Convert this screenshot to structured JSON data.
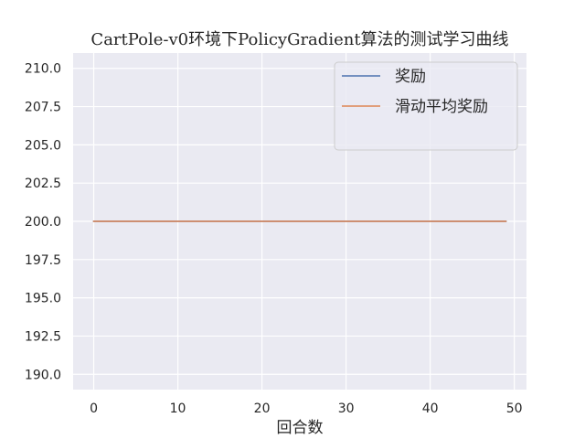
{
  "chart_data": {
    "type": "line",
    "title": "CartPole-v0环境下PolicyGradient算法的测试学习曲线",
    "xlabel": "回合数",
    "ylabel": "",
    "xlim": [
      -2.45,
      51.45
    ],
    "ylim": [
      189.0,
      211.0
    ],
    "xticks": [
      0,
      10,
      20,
      30,
      40,
      50
    ],
    "yticks": [
      190.0,
      192.5,
      195.0,
      197.5,
      200.0,
      202.5,
      205.0,
      207.5,
      210.0
    ],
    "ytick_labels": [
      "190.0",
      "192.5",
      "195.0",
      "197.5",
      "200.0",
      "202.5",
      "205.0",
      "207.5",
      "210.0"
    ],
    "grid": true,
    "legend_position": "top-right",
    "series": [
      {
        "name": "奖励",
        "color": "#4c72b0",
        "x": [
          0,
          49
        ],
        "y": [
          200.0,
          200.0
        ],
        "note": "constant at 200.0 for all 50 episodes (0–49), hidden beneath 滑动平均奖励"
      },
      {
        "name": "滑动平均奖励",
        "color": "#dd8452",
        "x": [
          0,
          49
        ],
        "y": [
          200.0,
          200.0
        ],
        "note": "constant at 200.0 for all 50 episodes (0–49)"
      }
    ]
  }
}
